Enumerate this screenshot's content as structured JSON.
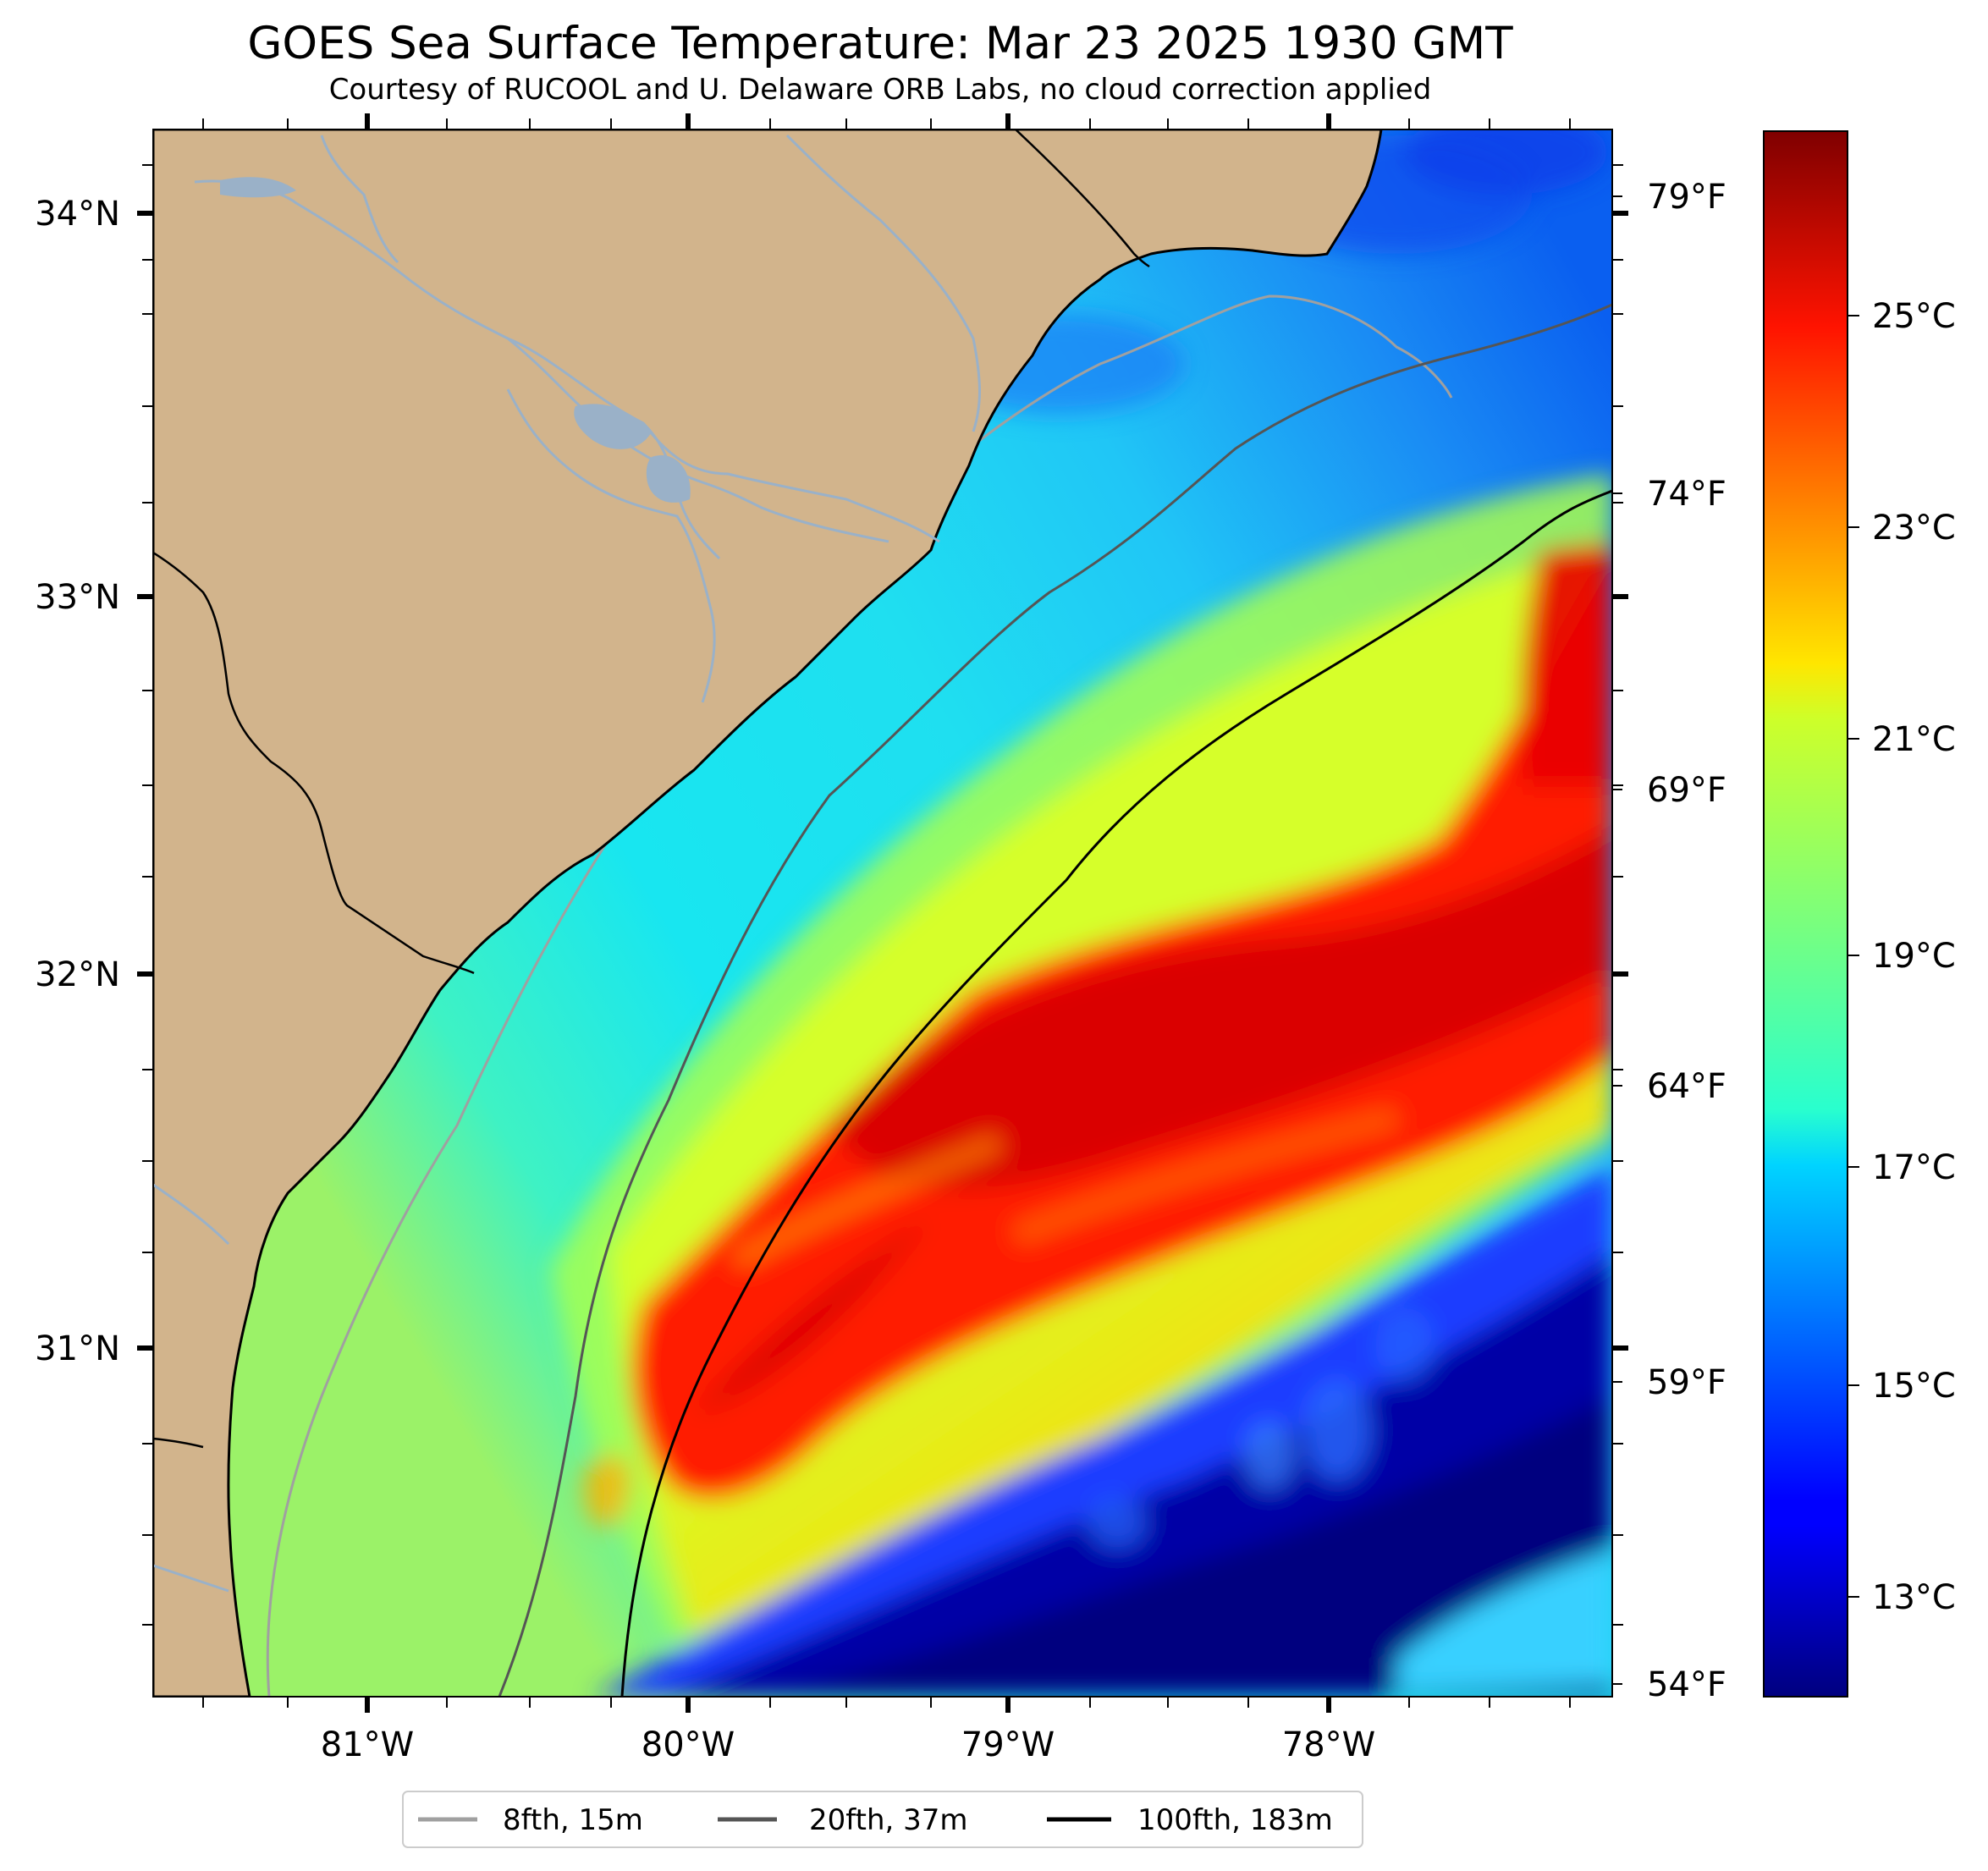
{
  "title": "GOES Sea Surface Temperature: Mar 23 2025 1930 GMT",
  "subtitle": "Courtesy of RUCOOL and U. Delaware ORB Labs, no cloud correction applied",
  "map": {
    "lat_labels": [
      "34°N",
      "33°N",
      "32°N",
      "31°N"
    ],
    "lon_labels": [
      "81°W",
      "80°W",
      "79°W",
      "78°W"
    ],
    "fahrenheit_labels": [
      "79°F",
      "74°F",
      "69°F",
      "64°F",
      "59°F",
      "54°F"
    ],
    "land_color": "#d2b48c",
    "extent": {
      "lon": [
        -81.66,
        -77.12
      ],
      "lat": [
        30.09,
        34.22
      ]
    }
  },
  "colorbar": {
    "celsius_labels": [
      "25°C",
      "23°C",
      "21°C",
      "19°C",
      "17°C",
      "15°C",
      "13°C"
    ],
    "range_c": [
      12.0,
      26.8
    ],
    "colormap": "jet"
  },
  "legend": {
    "items": [
      {
        "label": "8fth, 15m",
        "color": "#a0a0a0"
      },
      {
        "label": "20fth, 37m",
        "color": "#555555"
      },
      {
        "label": "100fth, 183m",
        "color": "#000000"
      }
    ]
  }
}
